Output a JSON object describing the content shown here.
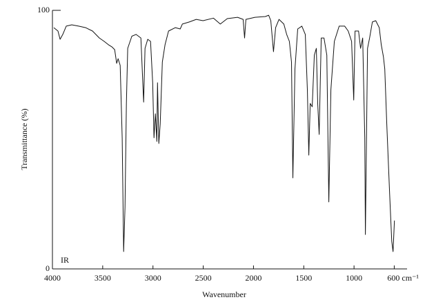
{
  "chart_data": {
    "type": "line",
    "x_label": "Wavenumber",
    "y_label": "Transmittance (%)",
    "annotation": "IR",
    "color": "#111111",
    "xlim": [
      4000,
      500
    ],
    "ylim": [
      0,
      100
    ],
    "xticks": [
      4000,
      3500,
      3000,
      2500,
      2000,
      1500,
      1000,
      {
        "value": 600,
        "label": "600 cm⁻¹"
      }
    ],
    "yticks": [
      0,
      100
    ],
    "x": [
      3986,
      3945,
      3924,
      3897,
      3863,
      3808,
      3739,
      3670,
      3601,
      3533,
      3485,
      3443,
      3409,
      3381,
      3361,
      3347,
      3326,
      3306,
      3292,
      3278,
      3264,
      3251,
      3210,
      3168,
      3120,
      3093,
      3079,
      3052,
      3024,
      3003,
      2990,
      2976,
      2962,
      2955,
      2942,
      2928,
      2907,
      2880,
      2845,
      2777,
      2729,
      2708,
      2639,
      2570,
      2502,
      2399,
      2330,
      2261,
      2158,
      2103,
      2089,
      2076,
      1986,
      1883,
      1849,
      1828,
      1801,
      1780,
      1746,
      1698,
      1670,
      1643,
      1622,
      1608,
      1588,
      1560,
      1519,
      1485,
      1464,
      1450,
      1436,
      1416,
      1395,
      1375,
      1361,
      1347,
      1326,
      1299,
      1271,
      1251,
      1230,
      1196,
      1148,
      1093,
      1058,
      1024,
      1003,
      990,
      955,
      935,
      914,
      893,
      887,
      866,
      845,
      818,
      784,
      749,
      729,
      708,
      694,
      674,
      646,
      625,
      612,
      598
    ],
    "values": [
      93.3,
      92,
      88.8,
      90.7,
      93.9,
      94.4,
      93.9,
      93.3,
      92,
      89.3,
      88,
      86.7,
      85.9,
      84.8,
      79.5,
      81.3,
      78.7,
      50.7,
      6.7,
      24,
      64,
      85.3,
      90,
      90.7,
      89.3,
      64.5,
      85.3,
      88.8,
      88,
      72,
      50.7,
      60,
      49.3,
      72,
      48.5,
      56,
      80,
      86.7,
      92,
      93.3,
      92.8,
      94.7,
      95.5,
      96.5,
      96,
      97,
      94.7,
      96.8,
      97.3,
      96.5,
      89.3,
      96.5,
      97.3,
      97.6,
      98.1,
      96,
      84,
      93.3,
      96.5,
      94.7,
      90.7,
      88,
      80,
      35.2,
      77.3,
      92.8,
      93.9,
      90.7,
      69.3,
      44,
      64,
      62.7,
      82.7,
      85.3,
      64,
      52,
      89.3,
      89.3,
      82.7,
      25.9,
      69.3,
      88,
      93.9,
      93.9,
      92,
      88,
      65.3,
      92,
      92,
      85.3,
      89.3,
      50.7,
      13.3,
      85.3,
      89.3,
      95.5,
      96,
      93.3,
      86.7,
      82.1,
      77.3,
      56,
      29.3,
      10.7,
      6.7,
      18.7
    ]
  }
}
